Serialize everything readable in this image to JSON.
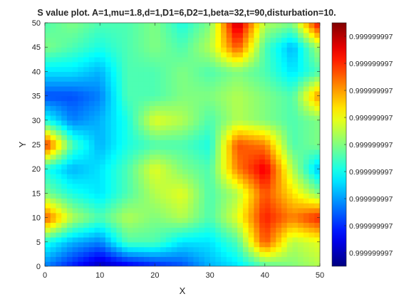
{
  "chart_data": {
    "type": "heatmap",
    "title": "S value plot. A=1,mu=1.8,d=1,D1=6,D2=1,beta=32,t=90,disturbation=10.",
    "xlabel": "X",
    "ylabel": "Y",
    "xlim": [
      0,
      50
    ],
    "ylim": [
      0,
      50
    ],
    "xticks": [
      0,
      10,
      20,
      30,
      40,
      50
    ],
    "yticks": [
      0,
      5,
      10,
      15,
      20,
      25,
      30,
      35,
      40,
      45,
      50
    ],
    "colormap": "jet",
    "grid": false,
    "colorbar": {
      "location": "right",
      "tick_labels": [
        "0.999999997",
        "0.999999997",
        "0.999999997",
        "0.999999997",
        "0.999999997",
        "0.999999997",
        "0.999999997",
        "0.999999997",
        "0.999999997"
      ]
    },
    "x": [
      0,
      5,
      10,
      15,
      20,
      25,
      30,
      35,
      40,
      45,
      50
    ],
    "y": [
      0,
      5,
      10,
      15,
      20,
      25,
      30,
      35,
      40,
      45,
      50
    ],
    "z_normalized": [
      [
        0.25,
        0.15,
        0.05,
        0.1,
        0.15,
        0.2,
        0.3,
        0.35,
        0.45,
        0.5,
        0.55
      ],
      [
        0.4,
        0.3,
        0.25,
        0.45,
        0.45,
        0.35,
        0.35,
        0.45,
        0.8,
        0.55,
        0.6
      ],
      [
        0.8,
        0.55,
        0.45,
        0.55,
        0.5,
        0.55,
        0.45,
        0.6,
        0.85,
        0.75,
        0.85
      ],
      [
        0.5,
        0.4,
        0.35,
        0.45,
        0.55,
        0.6,
        0.45,
        0.55,
        0.8,
        0.65,
        0.5
      ],
      [
        0.4,
        0.3,
        0.35,
        0.45,
        0.6,
        0.5,
        0.45,
        0.75,
        0.9,
        0.55,
        0.3
      ],
      [
        0.85,
        0.45,
        0.3,
        0.4,
        0.45,
        0.45,
        0.4,
        0.8,
        0.75,
        0.45,
        0.5
      ],
      [
        0.4,
        0.25,
        0.3,
        0.4,
        0.6,
        0.55,
        0.45,
        0.55,
        0.5,
        0.45,
        0.5
      ],
      [
        0.2,
        0.2,
        0.25,
        0.45,
        0.45,
        0.5,
        0.5,
        0.55,
        0.5,
        0.45,
        0.75
      ],
      [
        0.35,
        0.35,
        0.3,
        0.45,
        0.45,
        0.5,
        0.45,
        0.5,
        0.45,
        0.35,
        0.45
      ],
      [
        0.5,
        0.45,
        0.4,
        0.45,
        0.5,
        0.45,
        0.55,
        0.8,
        0.45,
        0.3,
        0.55
      ],
      [
        0.45,
        0.5,
        0.45,
        0.45,
        0.5,
        0.4,
        0.5,
        0.95,
        0.55,
        0.5,
        0.9
      ]
    ]
  }
}
